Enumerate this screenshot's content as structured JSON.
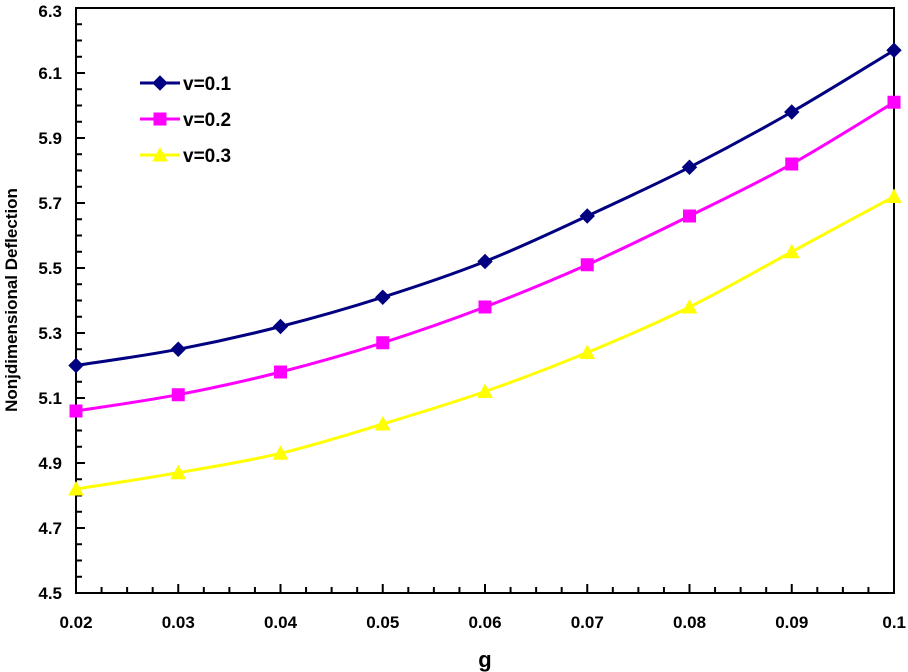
{
  "chart_data": {
    "type": "line",
    "title": "",
    "xlabel": "g",
    "ylabel": "Nonjdimensional Deflection",
    "x": [
      0.02,
      0.03,
      0.04,
      0.05,
      0.06,
      0.07,
      0.08,
      0.09,
      0.1
    ],
    "x_tick_labels": [
      "0.02",
      "0.03",
      "0.04",
      "0.05",
      "0.06",
      "0.07",
      "0.08",
      "0.09",
      "0.1"
    ],
    "y_tick_labels": [
      "4.5",
      "4.7",
      "4.9",
      "5.1",
      "5.3",
      "5.5",
      "5.7",
      "5.9",
      "6.1",
      "6.3"
    ],
    "xlim": [
      0.02,
      0.1
    ],
    "ylim": [
      4.5,
      6.3
    ],
    "grid": false,
    "legend_position": "top-left",
    "series": [
      {
        "name": "v=0.1",
        "color": "#000080",
        "marker": "diamond",
        "values": [
          5.2,
          5.25,
          5.32,
          5.41,
          5.52,
          5.66,
          5.81,
          5.98,
          6.17
        ]
      },
      {
        "name": "v=0.2",
        "color": "#FF00FF",
        "marker": "square",
        "values": [
          5.06,
          5.11,
          5.18,
          5.27,
          5.38,
          5.51,
          5.66,
          5.82,
          6.01
        ]
      },
      {
        "name": "v=0.3",
        "color": "#FFFF00",
        "marker": "triangle",
        "values": [
          4.82,
          4.87,
          4.93,
          5.02,
          5.12,
          5.24,
          5.38,
          5.55,
          5.72
        ]
      }
    ]
  }
}
